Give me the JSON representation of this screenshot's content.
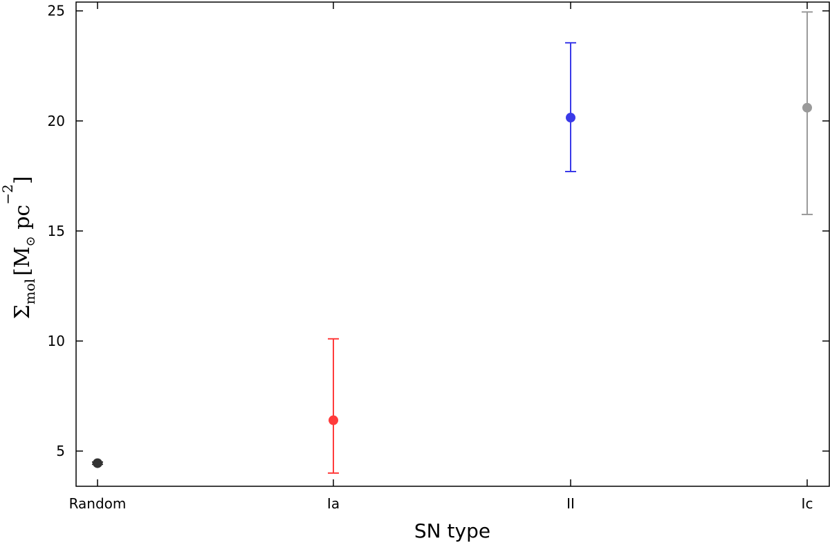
{
  "chart_data": {
    "type": "scatter",
    "xlabel": "SN type",
    "ylabel": {
      "symbol": "Σ",
      "subscript": "mol",
      "unit_open": "[M",
      "unit_sun": "⊙",
      "unit_mid": " pc",
      "unit_exp": "−2",
      "unit_close": "]"
    },
    "categories": [
      "Random",
      "Ia",
      "II",
      "Ic"
    ],
    "ylim": [
      3.4,
      25.4
    ],
    "yticks": [
      5,
      10,
      15,
      20,
      25
    ],
    "grid": false,
    "points": [
      {
        "category": "Random",
        "y": 4.45,
        "err_low": 4.4,
        "err_high": 4.5,
        "color": "#333333"
      },
      {
        "category": "Ia",
        "y": 6.4,
        "err_low": 4.0,
        "err_high": 10.1,
        "color": "#ff3b3b"
      },
      {
        "category": "II",
        "y": 20.15,
        "err_low": 17.7,
        "err_high": 23.55,
        "color": "#3a3ae8"
      },
      {
        "category": "Ic",
        "y": 20.6,
        "err_low": 15.75,
        "err_high": 24.95,
        "color": "#9a9a9a"
      }
    ]
  }
}
